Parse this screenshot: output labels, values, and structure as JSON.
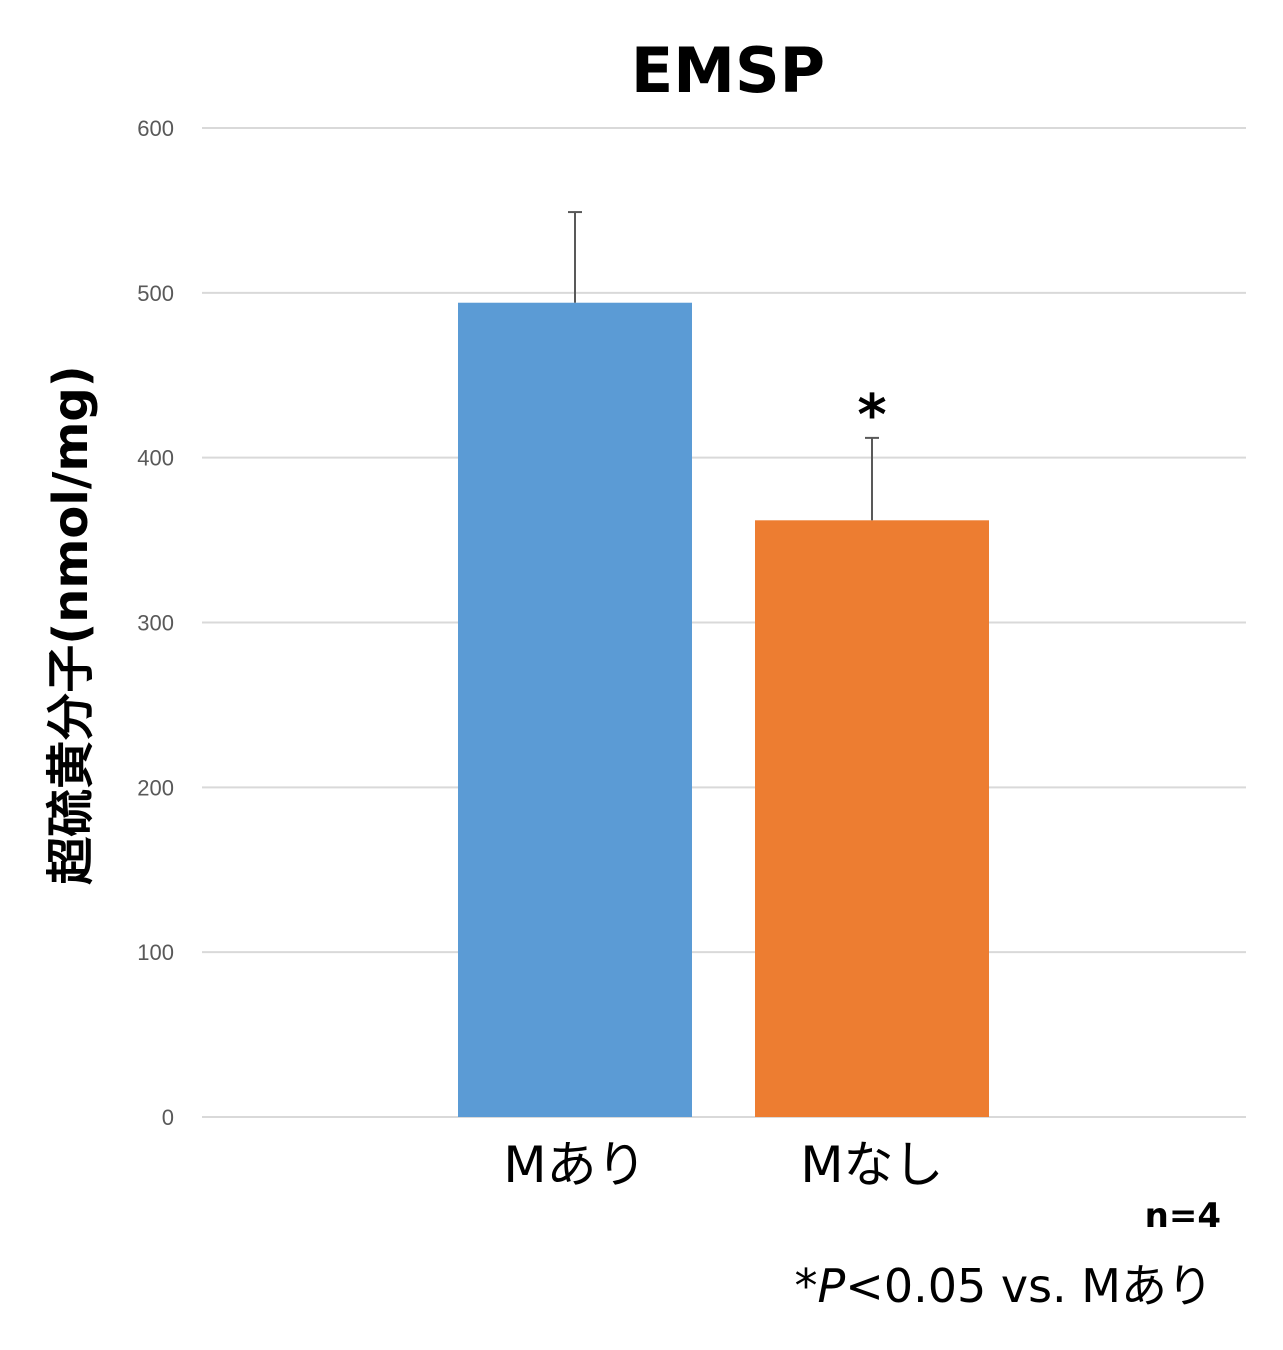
{
  "chart_data": {
    "type": "bar",
    "title": "EMSP",
    "ylabel": "超硫黄分子(nmol/mg)",
    "xlabel": "",
    "categories": [
      "Mあり",
      "Mなし"
    ],
    "values": [
      494,
      362
    ],
    "error_upper": [
      549,
      412
    ],
    "bar_colors": [
      "#5b9bd5",
      "#ed7d31"
    ],
    "significance": [
      "",
      "*"
    ],
    "ylim": [
      0,
      600
    ],
    "yticks": [
      0,
      100,
      200,
      300,
      400,
      500,
      600
    ],
    "grid": true
  },
  "notes": {
    "n": "n=4",
    "sig_star": "*",
    "sig_p": "P",
    "sig_rest": "<0.05 vs. Mあり"
  }
}
